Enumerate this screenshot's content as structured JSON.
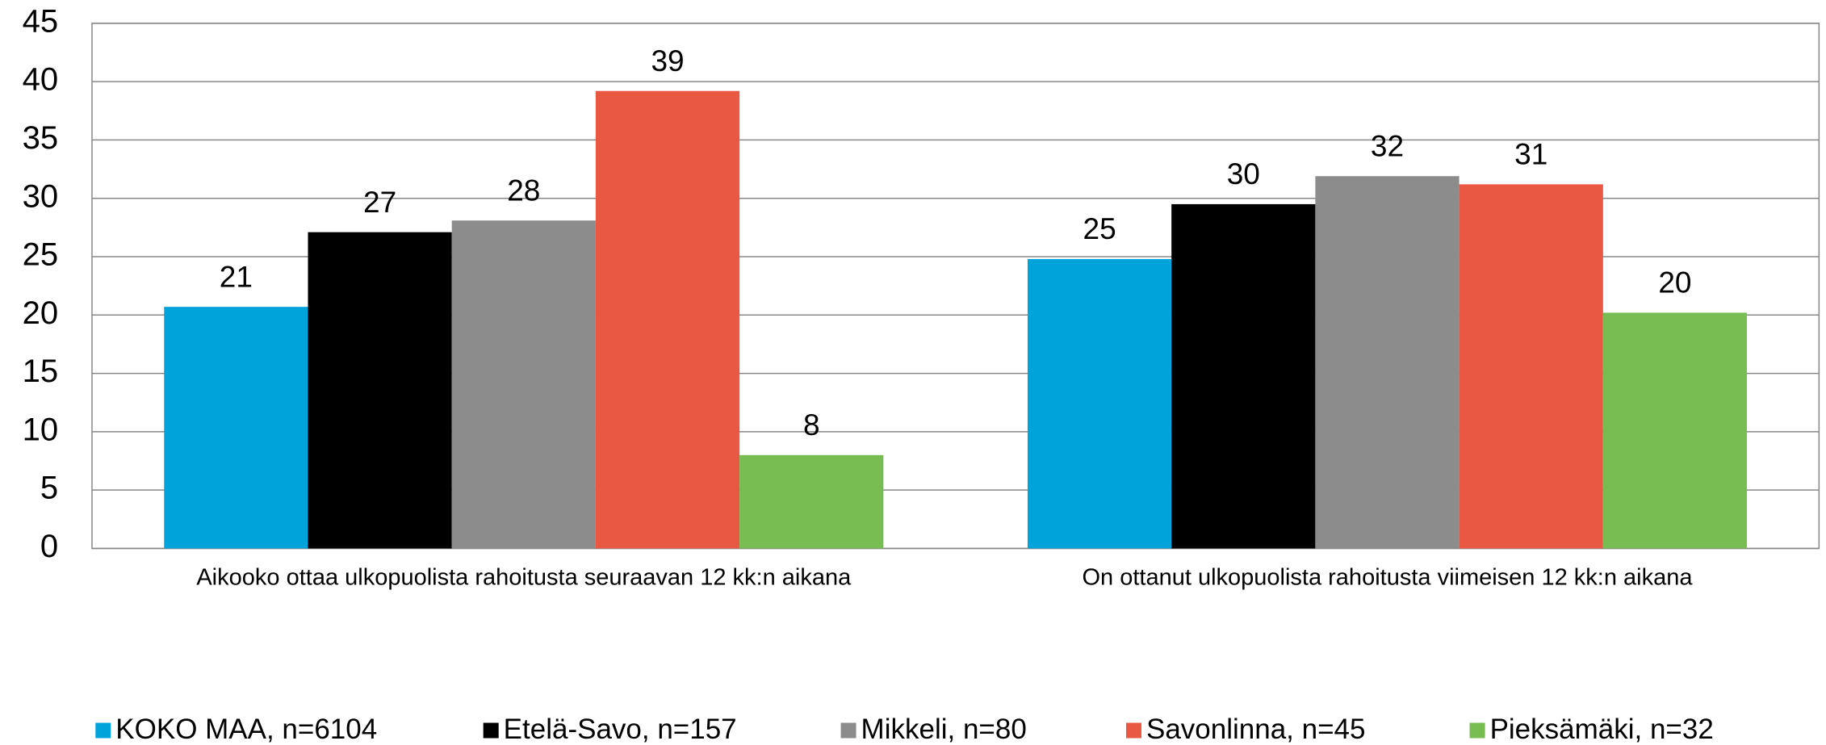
{
  "chart_data": {
    "type": "bar",
    "categories": [
      "Aikooko ottaa ulkopuolista rahoitusta seuraavan 12 kk:n aikana",
      "On ottanut ulkopuolista rahoitusta viimeisen 12 kk:n aikana"
    ],
    "series": [
      {
        "name": "KOKO MAA, n=6104",
        "color": "#00a3da",
        "values": [
          20.7,
          24.8
        ],
        "value_labels": [
          "21",
          "25"
        ]
      },
      {
        "name": "Etelä-Savo, n=157",
        "color": "#000000",
        "values": [
          27.1,
          29.5
        ],
        "value_labels": [
          "27",
          "30"
        ]
      },
      {
        "name": "Mikkeli, n=80",
        "color": "#8c8c8c",
        "values": [
          28.1,
          31.9
        ],
        "value_labels": [
          "28",
          "32"
        ]
      },
      {
        "name": "Savonlinna, n=45",
        "color": "#e95842",
        "values": [
          39.2,
          31.2
        ],
        "value_labels": [
          "39",
          "31"
        ]
      },
      {
        "name": "Pieksämäki, n=32",
        "color": "#77bd52",
        "values": [
          8.0,
          20.2
        ],
        "value_labels": [
          "8",
          "20"
        ]
      }
    ],
    "ylim": [
      0,
      45
    ],
    "yticks": [
      0,
      5,
      10,
      15,
      20,
      25,
      30,
      35,
      40,
      45
    ],
    "grid": true,
    "legend": "bottom"
  }
}
